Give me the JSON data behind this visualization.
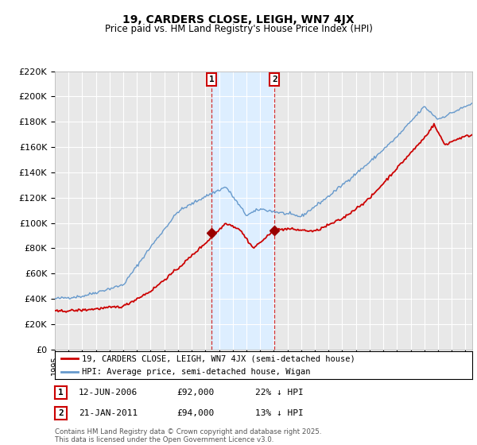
{
  "title": "19, CARDERS CLOSE, LEIGH, WN7 4JX",
  "subtitle": "Price paid vs. HM Land Registry's House Price Index (HPI)",
  "legend_line1": "19, CARDERS CLOSE, LEIGH, WN7 4JX (semi-detached house)",
  "legend_line2": "HPI: Average price, semi-detached house, Wigan",
  "transaction1_label": "1",
  "transaction1_date": "12-JUN-2006",
  "transaction1_price": "£92,000",
  "transaction1_hpi": "22% ↓ HPI",
  "transaction2_label": "2",
  "transaction2_date": "21-JAN-2011",
  "transaction2_price": "£94,000",
  "transaction2_hpi": "13% ↓ HPI",
  "footnote": "Contains HM Land Registry data © Crown copyright and database right 2025.\nThis data is licensed under the Open Government Licence v3.0.",
  "hpi_color": "#6699cc",
  "price_color": "#cc0000",
  "marker_color": "#990000",
  "shading_color": "#ddeeff",
  "bg_color": "#e8e8e8",
  "grid_color": "#ffffff",
  "ylim": [
    0,
    220000
  ],
  "yticks": [
    0,
    20000,
    40000,
    60000,
    80000,
    100000,
    120000,
    140000,
    160000,
    180000,
    200000,
    220000
  ],
  "xmin": 1995,
  "xmax": 2025.5,
  "t1_x": 2006.45,
  "t1_y": 92000,
  "t2_x": 2011.05,
  "t2_y": 94000
}
